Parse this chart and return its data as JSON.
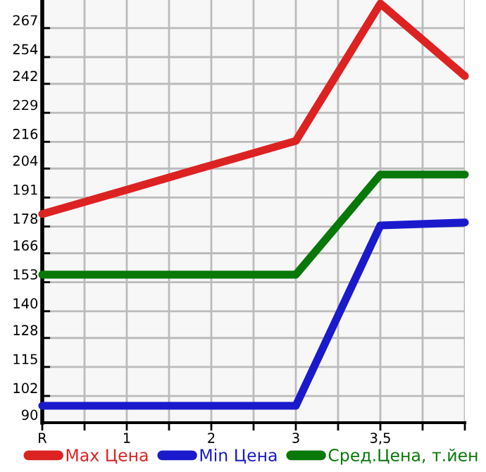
{
  "chart_data": {
    "type": "line",
    "categories": [
      "R",
      "1",
      "2",
      "3",
      "3,5",
      null
    ],
    "series": [
      {
        "name": "Max Цена",
        "color": "#dd2222",
        "values": [
          183.6,
          194.5,
          205.5,
          216.4,
          278,
          245.5
        ]
      },
      {
        "name": "Min Цена",
        "color": "#1a1acc",
        "values": [
          97.6,
          97.6,
          97.6,
          97.6,
          178.5,
          179.8
        ]
      },
      {
        "name": "Сред.Цена, т.йен",
        "color": "#087808",
        "values": [
          156.4,
          156.4,
          156.4,
          156.4,
          201.3,
          201.3
        ]
      }
    ],
    "ylim": [
      90,
      279.6
    ],
    "yticks": [
      90,
      102,
      115,
      128,
      140,
      153,
      166,
      178,
      191,
      204,
      216,
      229,
      242,
      254,
      267
    ],
    "grid": true,
    "legend": "bottom",
    "marker": "none",
    "line_style": "solid"
  }
}
